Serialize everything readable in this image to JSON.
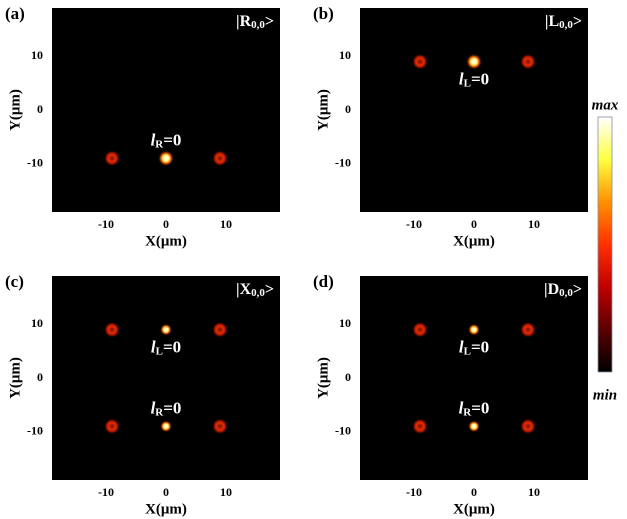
{
  "chart_data": [
    {
      "type": "spots",
      "panel_label": "(a)",
      "state": {
        "prefix": "|R",
        "sub": "0,0",
        "suffix": ">"
      },
      "xlabel": "X(μm)",
      "ylabel": "Y(μm)",
      "xlim": [
        -19,
        19
      ],
      "ylim": [
        -19,
        19
      ],
      "xticks": [
        -10,
        0,
        10
      ],
      "yticks": [
        10,
        0,
        -10
      ],
      "rows": [
        {
          "y": -9,
          "x": [
            -9,
            0,
            9
          ],
          "label": {
            "italic": "l",
            "sub": "R",
            "text": "=0"
          }
        }
      ]
    },
    {
      "type": "spots",
      "panel_label": "(b)",
      "state": {
        "prefix": "|L",
        "sub": "0,0",
        "suffix": ">"
      },
      "xlabel": "X(μm)",
      "ylabel": "Y(μm)",
      "xlim": [
        -19,
        19
      ],
      "ylim": [
        -19,
        19
      ],
      "xticks": [
        -10,
        0,
        10
      ],
      "yticks": [
        10,
        0,
        -10
      ],
      "rows": [
        {
          "y": 9,
          "x": [
            -9,
            0,
            9
          ],
          "label": {
            "italic": "l",
            "sub": "L",
            "text": "=0"
          }
        }
      ]
    },
    {
      "type": "spots",
      "panel_label": "(c)",
      "state": {
        "prefix": "|X",
        "sub": "0,0",
        "suffix": ">"
      },
      "xlabel": "X(μm)",
      "ylabel": "Y(μm)",
      "xlim": [
        -19,
        19
      ],
      "ylim": [
        -19,
        19
      ],
      "xticks": [
        -10,
        0,
        10
      ],
      "yticks": [
        10,
        0,
        -10
      ],
      "rows": [
        {
          "y": 9,
          "x": [
            -9,
            0,
            9
          ],
          "label": {
            "italic": "l",
            "sub": "L",
            "text": "=0"
          }
        },
        {
          "y": -9,
          "x": [
            -9,
            0,
            9
          ],
          "label": {
            "italic": "l",
            "sub": "R",
            "text": "=0"
          }
        }
      ]
    },
    {
      "type": "spots",
      "panel_label": "(d)",
      "state": {
        "prefix": "|D",
        "sub": "0,0",
        "suffix": ">"
      },
      "xlabel": "X(μm)",
      "ylabel": "Y(μm)",
      "xlim": [
        -19,
        19
      ],
      "ylim": [
        -19,
        19
      ],
      "xticks": [
        -10,
        0,
        10
      ],
      "yticks": [
        10,
        0,
        -10
      ],
      "rows": [
        {
          "y": 9,
          "x": [
            -9,
            0,
            9
          ],
          "label": {
            "italic": "l",
            "sub": "L",
            "text": "=0"
          }
        },
        {
          "y": -9,
          "x": [
            -9,
            0,
            9
          ],
          "label": {
            "italic": "l",
            "sub": "R",
            "text": "=0"
          }
        }
      ]
    }
  ],
  "colorbar": {
    "max_label": "max",
    "min_label": "min",
    "colors": [
      "#000000",
      "#5a0000",
      "#c00000",
      "#ff3000",
      "#ff9000",
      "#ffff40",
      "#ffffff"
    ]
  }
}
